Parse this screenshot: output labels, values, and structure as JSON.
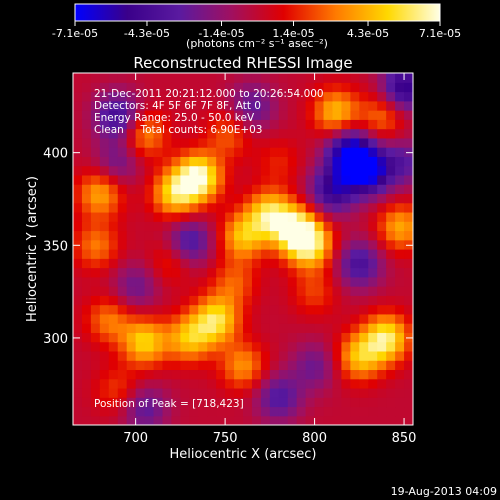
{
  "chart_data": {
    "type": "heatmap",
    "title": "Reconstructed RHESSI Image",
    "xlabel": "Heliocentric X (arcsec)",
    "ylabel": "Heliocentric Y (arcsec)",
    "xlim": [
      665,
      855
    ],
    "ylim": [
      253,
      443
    ],
    "x_ticks": [
      700,
      750,
      800,
      850
    ],
    "y_ticks": [
      300,
      350,
      400
    ],
    "colorbar": {
      "tick_labels": [
        "-7.1e-05",
        "-4.3e-05",
        "-1.4e-05",
        "1.4e-05",
        "4.3e-05",
        "7.1e-05"
      ],
      "tick_values": [
        -7.1e-05,
        -4.3e-05,
        -1.4e-05,
        1.4e-05,
        4.3e-05,
        7.1e-05
      ],
      "range": [
        -7.1e-05,
        7.1e-05
      ],
      "units_label": "(photons cm⁻² s⁻¹ asec⁻²)",
      "colors": [
        "#0000ff",
        "#3a008a",
        "#5a1aa0",
        "#a01060",
        "#e00000",
        "#ff7a00",
        "#ffd800",
        "#ffffe6"
      ]
    },
    "annotations": {
      "time": "21-Dec-2011 20:21:12.000 to 20:26:54.000",
      "detectors": "Detectors: 4F 5F 6F 7F 8F, Att 0",
      "energy": "Energy Range: 25.0 - 50.0 keV",
      "clean": "Clean     Total counts: 6.90E+03",
      "peak": "Position of Peak = [718,423]"
    },
    "sources": [
      {
        "x": 735,
        "y": 387,
        "value": 7e-05
      },
      {
        "x": 722,
        "y": 378,
        "value": 5e-05
      },
      {
        "x": 775,
        "y": 367,
        "value": 5.5e-05
      },
      {
        "x": 790,
        "y": 358,
        "value": 6.5e-05
      },
      {
        "x": 798,
        "y": 350,
        "value": 5e-05
      },
      {
        "x": 760,
        "y": 355,
        "value": 4.5e-05
      },
      {
        "x": 745,
        "y": 310,
        "value": 5.5e-05
      },
      {
        "x": 730,
        "y": 300,
        "value": 4.5e-05
      },
      {
        "x": 705,
        "y": 298,
        "value": 5e-05
      },
      {
        "x": 760,
        "y": 285,
        "value": 3.5e-05
      },
      {
        "x": 685,
        "y": 310,
        "value": 3e-05
      },
      {
        "x": 840,
        "y": 300,
        "value": 6e-05
      },
      {
        "x": 825,
        "y": 290,
        "value": 4.5e-05
      },
      {
        "x": 848,
        "y": 360,
        "value": 4e-05
      },
      {
        "x": 812,
        "y": 422,
        "value": 4.5e-05
      },
      {
        "x": 838,
        "y": 420,
        "value": 3e-05
      },
      {
        "x": 705,
        "y": 410,
        "value": 3.5e-05
      },
      {
        "x": 680,
        "y": 378,
        "value": 4e-05
      },
      {
        "x": 678,
        "y": 350,
        "value": 3e-05
      },
      {
        "x": 755,
        "y": 330,
        "value": 2.5e-05
      },
      {
        "x": 720,
        "y": 342,
        "value": 2e-05
      },
      {
        "x": 800,
        "y": 325,
        "value": 2e-05
      },
      {
        "x": 690,
        "y": 272,
        "value": 2e-05
      },
      {
        "x": 752,
        "y": 410,
        "value": 2.5e-05
      },
      {
        "x": 780,
        "y": 395,
        "value": 1.5e-05
      },
      {
        "x": 830,
        "y": 390,
        "value": -6.5e-05
      },
      {
        "x": 820,
        "y": 400,
        "value": -7.1e-05
      },
      {
        "x": 690,
        "y": 420,
        "value": -4.5e-05
      },
      {
        "x": 850,
        "y": 435,
        "value": -5.5e-05
      },
      {
        "x": 730,
        "y": 352,
        "value": -4e-05
      },
      {
        "x": 810,
        "y": 380,
        "value": -5e-05
      },
      {
        "x": 705,
        "y": 262,
        "value": -3e-05
      },
      {
        "x": 780,
        "y": 268,
        "value": -3.5e-05
      },
      {
        "x": 825,
        "y": 340,
        "value": -4e-05
      },
      {
        "x": 700,
        "y": 328,
        "value": -2.5e-05
      },
      {
        "x": 765,
        "y": 425,
        "value": -3e-05
      },
      {
        "x": 850,
        "y": 395,
        "value": -3e-05
      },
      {
        "x": 800,
        "y": 285,
        "value": -2.5e-05
      },
      {
        "x": 690,
        "y": 395,
        "value": -2.5e-05
      }
    ],
    "peak": {
      "x": 718,
      "y": 423
    }
  },
  "footer": {
    "date": "19-Aug-2013 04:09"
  }
}
